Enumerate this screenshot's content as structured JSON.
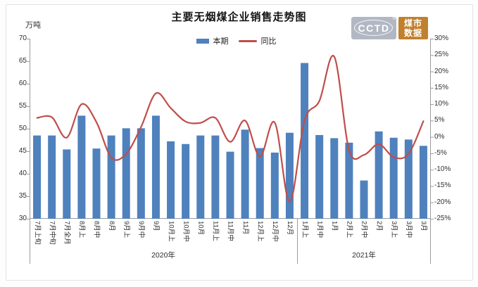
{
  "title": "主要无烟煤企业销售走势图",
  "unit_label": "万吨",
  "legend": [
    {
      "label": "本期",
      "type": "bar",
      "color": "#4f81bd"
    },
    {
      "label": "同比",
      "type": "line",
      "color": "#bf4e4a"
    }
  ],
  "logo": {
    "brand": "CCTD",
    "registered_mark": "®",
    "sub_line1": "煤市",
    "sub_line2": "数据",
    "gray_color": "#b2b8c3",
    "orange_color": "#c0802d"
  },
  "chart_data": {
    "type": "bar+line",
    "title": "主要无烟煤企业销售走势图",
    "categories": [
      "7月上旬",
      "7月中旬",
      "7月全月",
      "8月上",
      "8月中",
      "8月",
      "9月上",
      "9月中",
      "9月",
      "10月上",
      "10月中",
      "10月",
      "11月上",
      "11月中",
      "11月",
      "12月上",
      "12月中",
      "12月",
      "1月上",
      "1月中",
      "1月",
      "2月上",
      "2月中",
      "2月",
      "3月上",
      "3月中",
      "3月"
    ],
    "group_labels": [
      {
        "label": "2020年",
        "span": 18
      },
      {
        "label": "2021年",
        "span": 9
      }
    ],
    "series": [
      {
        "name": "本期",
        "type": "bar",
        "axis": "left",
        "unit": "万吨",
        "color": "#4f81bd",
        "values": [
          48.5,
          48.5,
          45.4,
          52.9,
          45.6,
          48.5,
          50.1,
          50.1,
          52.9,
          47.2,
          46.6,
          48.5,
          48.5,
          44.9,
          49.8,
          45.7,
          44.7,
          49.1,
          64.6,
          48.6,
          47.9,
          46.9,
          38.5,
          49.4,
          48.0,
          47.6,
          46.2
        ]
      },
      {
        "name": "同比",
        "type": "line",
        "axis": "right",
        "unit": "%",
        "color": "#bf4e4a",
        "values": [
          5.8,
          6.0,
          -0.2,
          10.0,
          4.5,
          -6.3,
          -5.2,
          3.0,
          13.3,
          8.8,
          4.7,
          4.3,
          5.8,
          -1.5,
          5.0,
          -6.0,
          4.4,
          -19.8,
          5.0,
          11.0,
          24.5,
          -4.0,
          -5.5,
          -2.2,
          -6.2,
          -5.2,
          4.8
        ]
      }
    ],
    "left_axis": {
      "label": "万吨",
      "min": 30,
      "max": 70,
      "step": 5,
      "ticks": [
        "70",
        "65",
        "60",
        "55",
        "50",
        "45",
        "40",
        "35",
        "30"
      ]
    },
    "right_axis": {
      "min": -25,
      "max": 30,
      "step": 5,
      "ticks": [
        "30%",
        "25%",
        "20%",
        "15%",
        "10%",
        "5%",
        "0%",
        "-5%",
        "-10%",
        "-15%",
        "-20%",
        "-25%"
      ]
    },
    "grid": false,
    "legend_position": "top-center",
    "smoothed_line": true
  }
}
